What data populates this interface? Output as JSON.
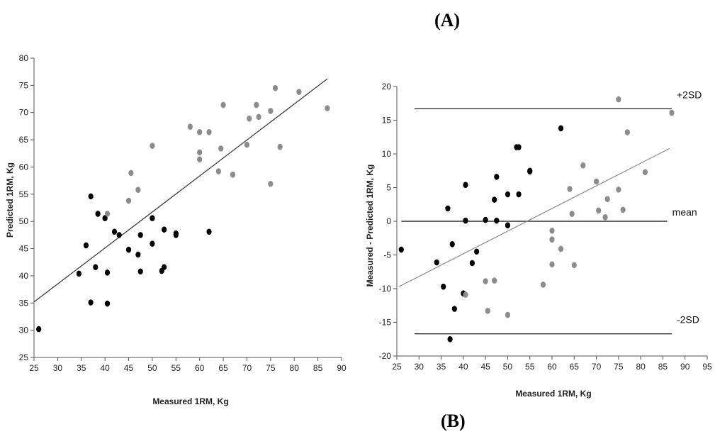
{
  "labels": {
    "panel_a": "(A)",
    "panel_b": "(B)"
  },
  "chart_data": [
    {
      "type": "scatter",
      "title": "",
      "xlabel": "Measured 1RM, Kg",
      "ylabel": "Predicted 1RM, Kg",
      "xlim": [
        25,
        90
      ],
      "ylim": [
        25,
        80
      ],
      "xticks": [
        25,
        30,
        35,
        40,
        45,
        50,
        55,
        60,
        65,
        70,
        75,
        80,
        85,
        90
      ],
      "yticks": [
        25,
        30,
        35,
        40,
        45,
        50,
        55,
        60,
        65,
        70,
        75,
        80
      ],
      "grid": false,
      "series": [
        {
          "color": "#000000",
          "points": [
            [
              26,
              30.2
            ],
            [
              34.5,
              40.4
            ],
            [
              36,
              45.6
            ],
            [
              37,
              35.1
            ],
            [
              37,
              54.6
            ],
            [
              38,
              41.6
            ],
            [
              38.5,
              51.4
            ],
            [
              40,
              50.6
            ],
            [
              40.5,
              40.6
            ],
            [
              40.5,
              34.9
            ],
            [
              42,
              48.1
            ],
            [
              43,
              47.5
            ],
            [
              45,
              44.8
            ],
            [
              47,
              43.9
            ],
            [
              47.5,
              47.5
            ],
            [
              47.5,
              40.8
            ],
            [
              50,
              50.6
            ],
            [
              50,
              45.9
            ],
            [
              52,
              40.9
            ],
            [
              52.5,
              48.5
            ],
            [
              52.5,
              41.6
            ],
            [
              55,
              47.5
            ],
            [
              55,
              47.8
            ],
            [
              62,
              48.1
            ]
          ]
        },
        {
          "color": "#8c8c8c",
          "points": [
            [
              40.5,
              51.4
            ],
            [
              45,
              53.8
            ],
            [
              45.5,
              58.9
            ],
            [
              47,
              55.8
            ],
            [
              50,
              63.9
            ],
            [
              58,
              67.4
            ],
            [
              60,
              66.4
            ],
            [
              60,
              62.7
            ],
            [
              60,
              61.4
            ],
            [
              62,
              66.4
            ],
            [
              64,
              59.2
            ],
            [
              64.5,
              63.4
            ],
            [
              65,
              71.4
            ],
            [
              67,
              58.6
            ],
            [
              70,
              64.1
            ],
            [
              70.5,
              68.9
            ],
            [
              72,
              71.4
            ],
            [
              72.5,
              69.2
            ],
            [
              75,
              70.3
            ],
            [
              75,
              56.9
            ],
            [
              76,
              74.5
            ],
            [
              77,
              63.7
            ],
            [
              81,
              73.8
            ],
            [
              87,
              70.8
            ]
          ]
        }
      ],
      "lines": [
        {
          "from": [
            25,
            35.2
          ],
          "to": [
            87,
            76.2
          ],
          "color": "#333333"
        }
      ]
    },
    {
      "type": "scatter",
      "title": "",
      "xlabel": "Measured 1RM, Kg",
      "ylabel": "Measured - Predicted 1RM, Kg",
      "xlim": [
        25,
        95
      ],
      "ylim": [
        -20,
        20
      ],
      "xticks": [
        25,
        30,
        35,
        40,
        45,
        50,
        55,
        60,
        65,
        70,
        75,
        80,
        85,
        90,
        95
      ],
      "yticks": [
        -20,
        -15,
        -10,
        -5,
        0,
        5,
        10,
        15,
        20
      ],
      "grid": false,
      "series": [
        {
          "color": "#000000",
          "points": [
            [
              26,
              -4.2
            ],
            [
              34,
              -6.1
            ],
            [
              35.5,
              -9.7
            ],
            [
              36.5,
              1.9
            ],
            [
              37,
              -17.5
            ],
            [
              37.5,
              -3.4
            ],
            [
              38,
              -13
            ],
            [
              40,
              -10.7
            ],
            [
              40.5,
              5.4
            ],
            [
              40.5,
              0.1
            ],
            [
              42,
              -6.2
            ],
            [
              43,
              -4.5
            ],
            [
              45,
              0.2
            ],
            [
              47,
              3.2
            ],
            [
              47.5,
              6.6
            ],
            [
              47.5,
              0.1
            ],
            [
              50,
              4
            ],
            [
              50,
              -0.6
            ],
            [
              52,
              11
            ],
            [
              52.5,
              11
            ],
            [
              52.5,
              4
            ],
            [
              55,
              7.4
            ],
            [
              55,
              7.5
            ],
            [
              62,
              13.8
            ]
          ]
        },
        {
          "color": "#8c8c8c",
          "points": [
            [
              40.5,
              -10.9
            ],
            [
              45,
              -8.9
            ],
            [
              45.5,
              -13.3
            ],
            [
              47,
              -8.8
            ],
            [
              50,
              -13.9
            ],
            [
              58,
              -9.4
            ],
            [
              60,
              -1.4
            ],
            [
              60,
              -2.7
            ],
            [
              60,
              -6.4
            ],
            [
              62,
              -4.1
            ],
            [
              64,
              4.8
            ],
            [
              64.5,
              1.1
            ],
            [
              65,
              -6.5
            ],
            [
              67,
              8.3
            ],
            [
              70,
              5.9
            ],
            [
              70.5,
              1.6
            ],
            [
              72,
              0.6
            ],
            [
              72.5,
              3.3
            ],
            [
              75,
              4.7
            ],
            [
              75,
              18.1
            ],
            [
              76,
              1.7
            ],
            [
              77,
              13.2
            ],
            [
              81,
              7.3
            ],
            [
              87,
              16.1
            ]
          ]
        }
      ],
      "lines": [
        {
          "from": [
            25.5,
            -9.7
          ],
          "to": [
            86.5,
            10.8
          ],
          "color": "#888888"
        }
      ],
      "reference_lines": [
        {
          "y": 16.7,
          "x_from": 29,
          "x_to": 87,
          "label": "+2SD"
        },
        {
          "y": 0,
          "x_from": 26,
          "x_to": 86,
          "label": "mean"
        },
        {
          "y": -16.7,
          "x_from": 29,
          "x_to": 87,
          "label": "-2SD"
        }
      ]
    }
  ]
}
